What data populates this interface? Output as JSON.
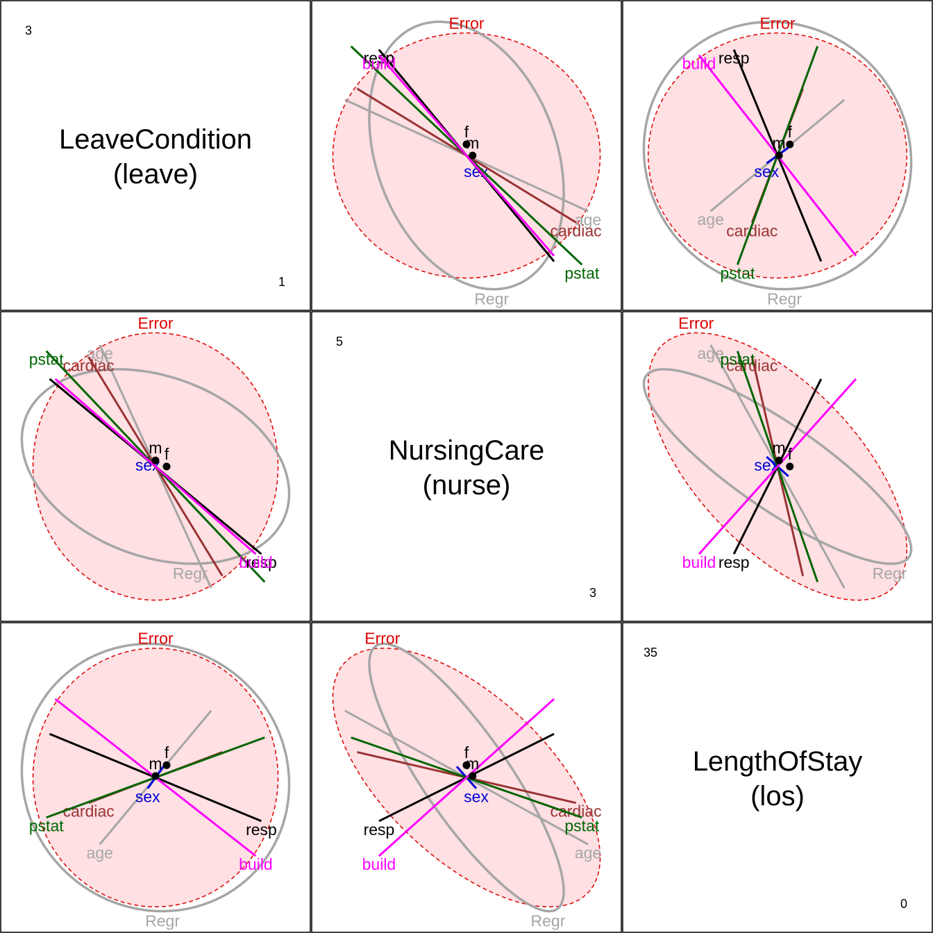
{
  "chart_data": {
    "type": "hypothesis-error-plot-matrix",
    "variables": [
      {
        "id": "leave",
        "title_line1": "LeaveCondition",
        "title_line2": "(leave)",
        "range_max": "3",
        "range_min": "1"
      },
      {
        "id": "nurse",
        "title_line1": "NursingCare",
        "title_line2": "(nurse)",
        "range_max": "5",
        "range_min": "3"
      },
      {
        "id": "los",
        "title_line1": "LengthOfStay",
        "title_line2": "(los)",
        "range_max": "35",
        "range_min": "0"
      }
    ],
    "center": {
      "leave": 2.0,
      "nurse": 4.0,
      "los": 17.5
    },
    "error": {
      "label": "Error",
      "color": "#dd0000",
      "fill": "#ffe0e3",
      "sd": {
        "leave": 0.55,
        "nurse": 0.55,
        "los": 8.9
      },
      "corr": {
        "leave_nurse": 0.0,
        "leave_los": 0.0,
        "nurse_los": -0.62
      }
    },
    "regression": {
      "label": "Regr",
      "color": "#a6a6a6",
      "sd": {
        "leave": 0.6,
        "nurse": 0.4,
        "los": 9.2
      },
      "corr": {
        "leave_nurse": -0.28,
        "leave_los": -0.05,
        "nurse_los": -0.85
      }
    },
    "terms": [
      {
        "name": "age",
        "color": "#a6a6a6",
        "dir": {
          "leave": -0.5,
          "nurse": 1.0,
          "los": -9.2
        }
      },
      {
        "name": "sex",
        "color": "#0000dd",
        "dir": {
          "leave": -0.07,
          "nurse": 0.08,
          "los": -1.5
        }
      },
      {
        "name": "cardiac",
        "color": "#993333",
        "dir": {
          "leave": -0.6,
          "nurse": 0.9,
          "los": -3.5
        }
      },
      {
        "name": "pstat",
        "color": "#006600",
        "dir": {
          "leave": -0.98,
          "nurse": 0.95,
          "los": -5.5
        }
      },
      {
        "name": "resp",
        "color": "#000000",
        "dir": {
          "leave": 0.95,
          "nurse": -0.72,
          "los": -6.0
        }
      },
      {
        "name": "build",
        "color": "#ff00ff",
        "dir": {
          "leave": 0.9,
          "nurse": -0.72,
          "los": -10.8
        }
      }
    ],
    "levels": [
      {
        "name": "f",
        "point": {
          "leave": 2.1,
          "nurse": 4.0,
          "los": 19.2
        }
      },
      {
        "name": "m",
        "point": {
          "leave": 2.0,
          "nurse": 4.05,
          "los": 17.7
        }
      }
    ]
  }
}
